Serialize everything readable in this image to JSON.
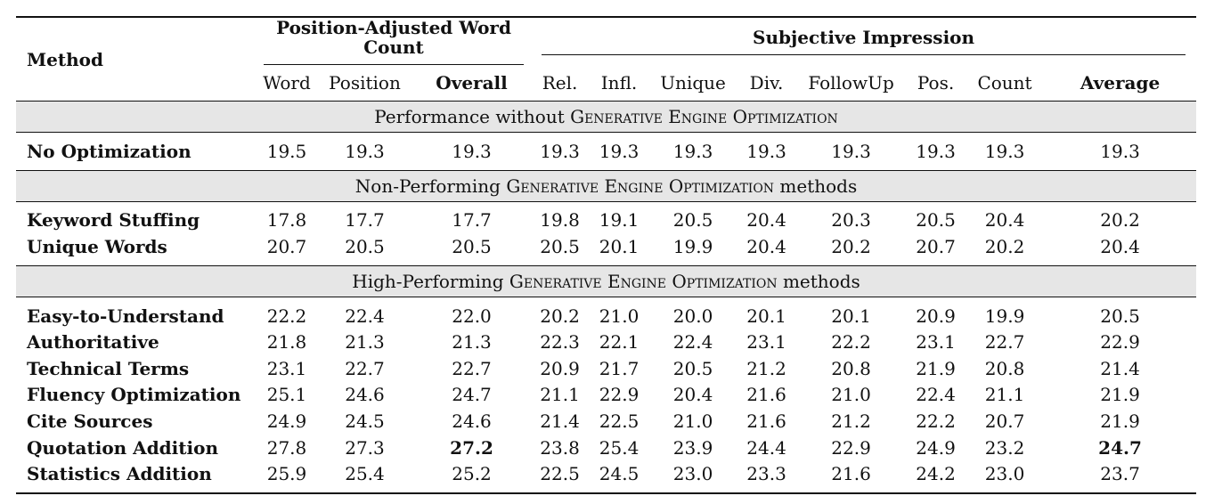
{
  "header": {
    "method": "Method",
    "group_word_count": "Position-Adjusted Word Count",
    "group_subjective": "Subjective Impression",
    "columns": [
      "Word",
      "Position",
      "Overall",
      "Rel.",
      "Infl.",
      "Unique",
      "Div.",
      "FollowUp",
      "Pos.",
      "Count",
      "Average"
    ]
  },
  "sections": [
    {
      "title_prefix": "Performance without ",
      "title_sc": "Generative Engine Optimization",
      "title_suffix": "",
      "rows": [
        {
          "method": "No Optimization",
          "values": [
            "19.5",
            "19.3",
            "19.3",
            "19.3",
            "19.3",
            "19.3",
            "19.3",
            "19.3",
            "19.3",
            "19.3",
            "19.3"
          ]
        }
      ]
    },
    {
      "title_prefix": "Non-Performing ",
      "title_sc": "Generative Engine Optimization",
      "title_suffix": " methods",
      "rows": [
        {
          "method": "Keyword Stuffing",
          "values": [
            "17.8",
            "17.7",
            "17.7",
            "19.8",
            "19.1",
            "20.5",
            "20.4",
            "20.3",
            "20.5",
            "20.4",
            "20.2"
          ]
        },
        {
          "method": "Unique Words",
          "values": [
            "20.7",
            "20.5",
            "20.5",
            "20.5",
            "20.1",
            "19.9",
            "20.4",
            "20.2",
            "20.7",
            "20.2",
            "20.4"
          ]
        }
      ]
    },
    {
      "title_prefix": "High-Performing ",
      "title_sc": "Generative Engine Optimization",
      "title_suffix": " methods",
      "rows": [
        {
          "method": "Easy-to-Understand",
          "values": [
            "22.2",
            "22.4",
            "22.0",
            "20.2",
            "21.0",
            "20.0",
            "20.1",
            "20.1",
            "20.9",
            "19.9",
            "20.5"
          ]
        },
        {
          "method": "Authoritative",
          "values": [
            "21.8",
            "21.3",
            "21.3",
            "22.3",
            "22.1",
            "22.4",
            "23.1",
            "22.2",
            "23.1",
            "22.7",
            "22.9"
          ]
        },
        {
          "method": "Technical Terms",
          "values": [
            "23.1",
            "22.7",
            "22.7",
            "20.9",
            "21.7",
            "20.5",
            "21.2",
            "20.8",
            "21.9",
            "20.8",
            "21.4"
          ]
        },
        {
          "method": "Fluency Optimization",
          "values": [
            "25.1",
            "24.6",
            "24.7",
            "21.1",
            "22.9",
            "20.4",
            "21.6",
            "21.0",
            "22.4",
            "21.1",
            "21.9"
          ]
        },
        {
          "method": "Cite Sources",
          "values": [
            "24.9",
            "24.5",
            "24.6",
            "21.4",
            "22.5",
            "21.0",
            "21.6",
            "21.2",
            "22.2",
            "20.7",
            "21.9"
          ]
        },
        {
          "method": "Quotation Addition",
          "values": [
            "27.8",
            "27.3",
            "27.2",
            "23.8",
            "25.4",
            "23.9",
            "24.4",
            "22.9",
            "24.9",
            "23.2",
            "24.7"
          ]
        },
        {
          "method": "Statistics Addition",
          "values": [
            "25.9",
            "25.4",
            "25.2",
            "22.5",
            "24.5",
            "23.0",
            "23.3",
            "21.6",
            "24.2",
            "23.0",
            "23.7"
          ]
        }
      ]
    }
  ],
  "bold_cells": [
    {
      "section": 2,
      "row": 5,
      "col": 2
    },
    {
      "section": 2,
      "row": 5,
      "col": 10
    }
  ]
}
